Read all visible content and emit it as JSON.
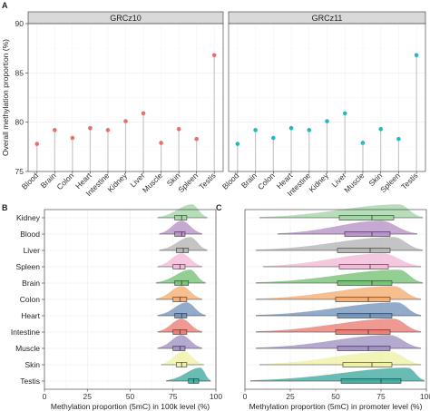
{
  "chart_data": [
    {
      "panel": "A",
      "type": "scatter",
      "style": "lollipop",
      "ylabel": "Overall methylation proportion (%)",
      "ylim": [
        75,
        90
      ],
      "yticks": [
        75,
        80,
        85,
        90
      ],
      "grid": true,
      "categories": [
        "Blood",
        "Brain",
        "Colon",
        "Heart",
        "Intestine",
        "Kidney",
        "Liver",
        "Muscle",
        "Skin",
        "Spleen",
        "Testis"
      ],
      "facets": [
        {
          "title": "GRCz10",
          "color": "#e9706a",
          "values": [
            77.8,
            79.2,
            78.4,
            79.4,
            79.2,
            80.1,
            80.9,
            77.9,
            79.3,
            78.3,
            86.8
          ]
        },
        {
          "title": "GRCz11",
          "color": "#22b9c2",
          "values": [
            77.8,
            79.2,
            78.4,
            79.4,
            79.2,
            80.1,
            80.9,
            77.9,
            79.3,
            78.3,
            86.8
          ]
        }
      ]
    },
    {
      "panel": "B",
      "type": "area",
      "style": "half-violin with boxplot",
      "xlabel": "Methylation proportion (5mC) in 100k level (%)",
      "xlim": [
        0,
        100
      ],
      "xticks": [
        0,
        25,
        50,
        75,
        100
      ],
      "grid": true,
      "categories": [
        "Kidney",
        "Blood",
        "Liver",
        "Spleen",
        "Brain",
        "Colon",
        "Heart",
        "Intestine",
        "Muscle",
        "Skin",
        "Testis"
      ],
      "colors": [
        "#9dd4a1",
        "#b38cc4",
        "#b0b0b0",
        "#f2b6d6",
        "#6fbf6f",
        "#f4a96a",
        "#6d8fb8",
        "#e8776c",
        "#9c8cc0",
        "#eef0a0",
        "#37a69a"
      ],
      "distributions": [
        {
          "min": 66,
          "q1": 76,
          "median": 80,
          "q3": 83,
          "max": 95,
          "peak": 86
        },
        {
          "min": 67,
          "q1": 76,
          "median": 80,
          "q3": 82,
          "max": 92,
          "peak": 80
        },
        {
          "min": 67,
          "q1": 77,
          "median": 81,
          "q3": 84,
          "max": 95,
          "peak": 85
        },
        {
          "min": 66,
          "q1": 75,
          "median": 79,
          "q3": 82,
          "max": 92,
          "peak": 80
        },
        {
          "min": 65,
          "q1": 76,
          "median": 80,
          "q3": 84,
          "max": 94,
          "peak": 85
        },
        {
          "min": 65,
          "q1": 75,
          "median": 79,
          "q3": 83,
          "max": 92,
          "peak": 80
        },
        {
          "min": 66,
          "q1": 76,
          "median": 80,
          "q3": 83,
          "max": 94,
          "peak": 83
        },
        {
          "min": 66,
          "q1": 75,
          "median": 79,
          "q3": 83,
          "max": 92,
          "peak": 80
        },
        {
          "min": 66,
          "q1": 75,
          "median": 79,
          "q3": 82,
          "max": 92,
          "peak": 80
        },
        {
          "min": 68,
          "q1": 77,
          "median": 80,
          "q3": 83,
          "max": 93,
          "peak": 81
        },
        {
          "min": 71,
          "q1": 84,
          "median": 87,
          "q3": 90,
          "max": 97,
          "peak": 91
        }
      ]
    },
    {
      "panel": "C",
      "type": "area",
      "style": "half-violin with boxplot",
      "xlabel": "Methylation proportion (5mC) in promoter level (%)",
      "xlim": [
        0,
        100
      ],
      "xticks": [
        0,
        25,
        50,
        75,
        100
      ],
      "grid": true,
      "categories": [
        "Kidney",
        "Blood",
        "Liver",
        "Spleen",
        "Brain",
        "Colon",
        "Heart",
        "Intestine",
        "Muscle",
        "Skin",
        "Testis"
      ],
      "colors": [
        "#9dd4a1",
        "#b38cc4",
        "#b0b0b0",
        "#f2b6d6",
        "#6fbf6f",
        "#f4a96a",
        "#6d8fb8",
        "#e8776c",
        "#9c8cc0",
        "#eef0a0",
        "#37a69a"
      ],
      "distributions": [
        {
          "min": 8,
          "q1": 52,
          "median": 70,
          "q3": 82,
          "max": 98,
          "peak": 85
        },
        {
          "min": 18,
          "q1": 55,
          "median": 70,
          "q3": 80,
          "max": 95,
          "peak": 75
        },
        {
          "min": 6,
          "q1": 51,
          "median": 69,
          "q3": 80,
          "max": 98,
          "peak": 82
        },
        {
          "min": 10,
          "q1": 52,
          "median": 69,
          "q3": 79,
          "max": 97,
          "peak": 76
        },
        {
          "min": 6,
          "q1": 51,
          "median": 70,
          "q3": 81,
          "max": 98,
          "peak": 85
        },
        {
          "min": 6,
          "q1": 50,
          "median": 68,
          "q3": 80,
          "max": 97,
          "peak": 82
        },
        {
          "min": 6,
          "q1": 51,
          "median": 69,
          "q3": 81,
          "max": 97,
          "peak": 84
        },
        {
          "min": 6,
          "q1": 50,
          "median": 68,
          "q3": 80,
          "max": 97,
          "peak": 82
        },
        {
          "min": 6,
          "q1": 51,
          "median": 68,
          "q3": 80,
          "max": 97,
          "peak": 80
        },
        {
          "min": 8,
          "q1": 54,
          "median": 70,
          "q3": 81,
          "max": 97,
          "peak": 80
        },
        {
          "min": 3,
          "q1": 53,
          "median": 75,
          "q3": 86,
          "max": 99,
          "peak": 90
        }
      ]
    }
  ]
}
